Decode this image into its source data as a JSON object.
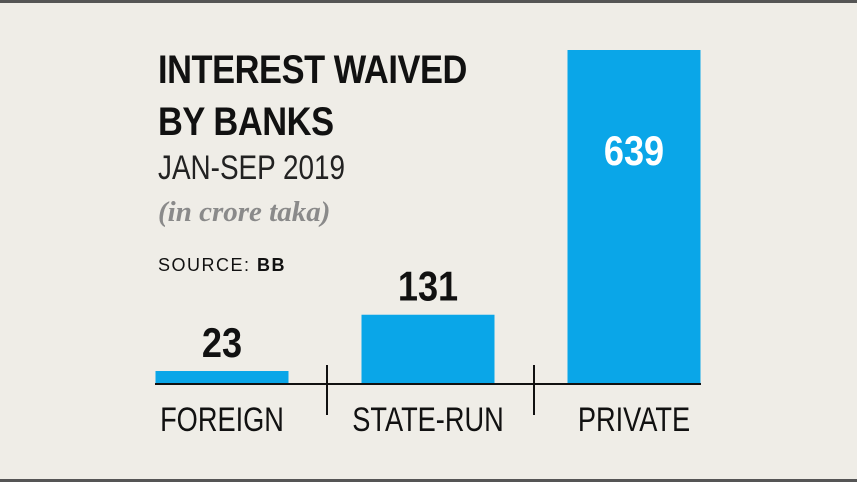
{
  "header": {
    "title_line_1": "INTEREST WAIVED",
    "title_line_2": "BY BANKS",
    "subtitle": "JAN-SEP 2019",
    "units": "(in crore taka)",
    "source_label": "SOURCE:",
    "source_value": "BB"
  },
  "colors": {
    "bar": "#0aa6e8",
    "value_label_inside": "#ffffff",
    "value_label_outside": "#111111",
    "background": "#efede7",
    "frame": "#555555"
  },
  "chart_data": {
    "type": "bar",
    "title": "INTEREST WAIVED BY BANKS",
    "subtitle": "JAN-SEP 2019",
    "ylabel": "(in crore taka)",
    "categories": [
      "FOREIGN",
      "STATE-RUN",
      "PRIVATE"
    ],
    "values": [
      23,
      131,
      639
    ],
    "value_labels": [
      "23",
      "131",
      "639"
    ],
    "ylim": [
      0,
      639
    ],
    "grid": false,
    "legend": "none"
  }
}
